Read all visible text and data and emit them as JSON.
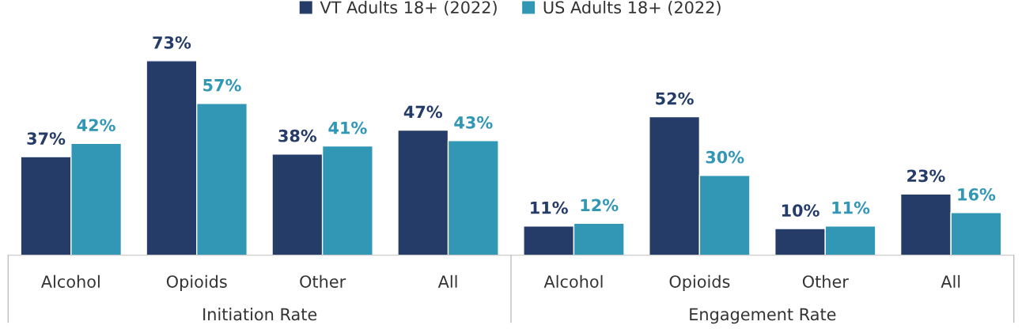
{
  "chart_data": {
    "type": "bar",
    "categories": [
      "Alcohol",
      "Opioids",
      "Other",
      "All",
      "Alcohol",
      "Opioids",
      "Other",
      "All"
    ],
    "series": [
      {
        "name": "VT Adults 18+ (2022)",
        "color": "#253c68",
        "values": [
          37,
          73,
          38,
          47,
          11,
          52,
          10,
          23
        ],
        "value_labels": [
          "37%",
          "73%",
          "38%",
          "47%",
          "11%",
          "52%",
          "10%",
          "23%"
        ]
      },
      {
        "name": "US Adults 18+ (2022)",
        "color": "#3197b5",
        "values": [
          42,
          57,
          41,
          43,
          12,
          30,
          11,
          16
        ],
        "value_labels": [
          "42%",
          "57%",
          "41%",
          "43%",
          "12%",
          "30%",
          "11%",
          "16%"
        ]
      }
    ],
    "annotations": [
      "Initiation Rate",
      "Engagement Rate"
    ],
    "legend": "top"
  }
}
